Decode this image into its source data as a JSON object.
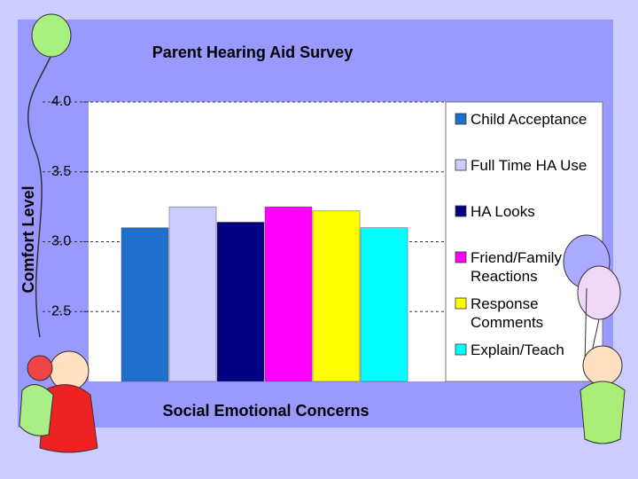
{
  "chart_data": {
    "type": "bar",
    "title": "Parent Hearing Aid Survey",
    "x_label": "Social Emotional Concerns",
    "y_label": "Comfort Level",
    "categories": [
      "Child Acceptance",
      "Full Time HA Use",
      "HA Looks",
      "Friend/Family Reactions",
      "Response Comments",
      "Explain/Teach"
    ],
    "values": [
      3.1,
      3.25,
      3.14,
      3.25,
      3.22,
      3.1
    ],
    "colors": [
      "#1f6fcc",
      "#ccccff",
      "#000080",
      "#ff00ff",
      "#ffff00",
      "#00ffff"
    ],
    "ylim": [
      2.0,
      4.0
    ],
    "yticks": [
      {
        "value": 2.5,
        "label": "2.5"
      },
      {
        "value": 3.0,
        "label": "3.0"
      },
      {
        "value": 3.5,
        "label": "3.5"
      },
      {
        "value": 4.0,
        "label": "4.0"
      }
    ],
    "grid": true,
    "legend": "right"
  }
}
